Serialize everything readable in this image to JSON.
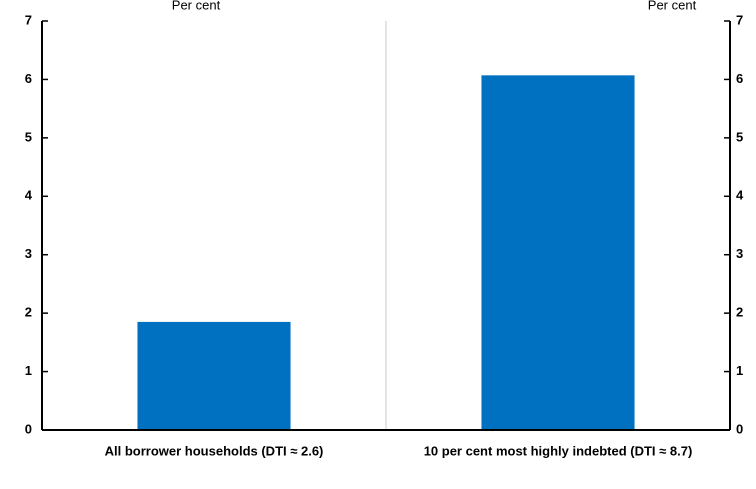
{
  "chart_data": {
    "type": "bar",
    "categories": [
      "All borrower households (DTI ≈ 2.6)",
      "10 per cent most highly indebted (DTI ≈ 8.7)"
    ],
    "values": [
      1.85,
      6.07
    ],
    "ylim": [
      0,
      7
    ],
    "yticks": [
      0,
      1,
      2,
      3,
      4,
      5,
      6,
      7
    ],
    "ylabel_left": "Per cent",
    "ylabel_right": "Per cent",
    "grid": "vertical divider only",
    "bar_color": "#0070C0"
  }
}
